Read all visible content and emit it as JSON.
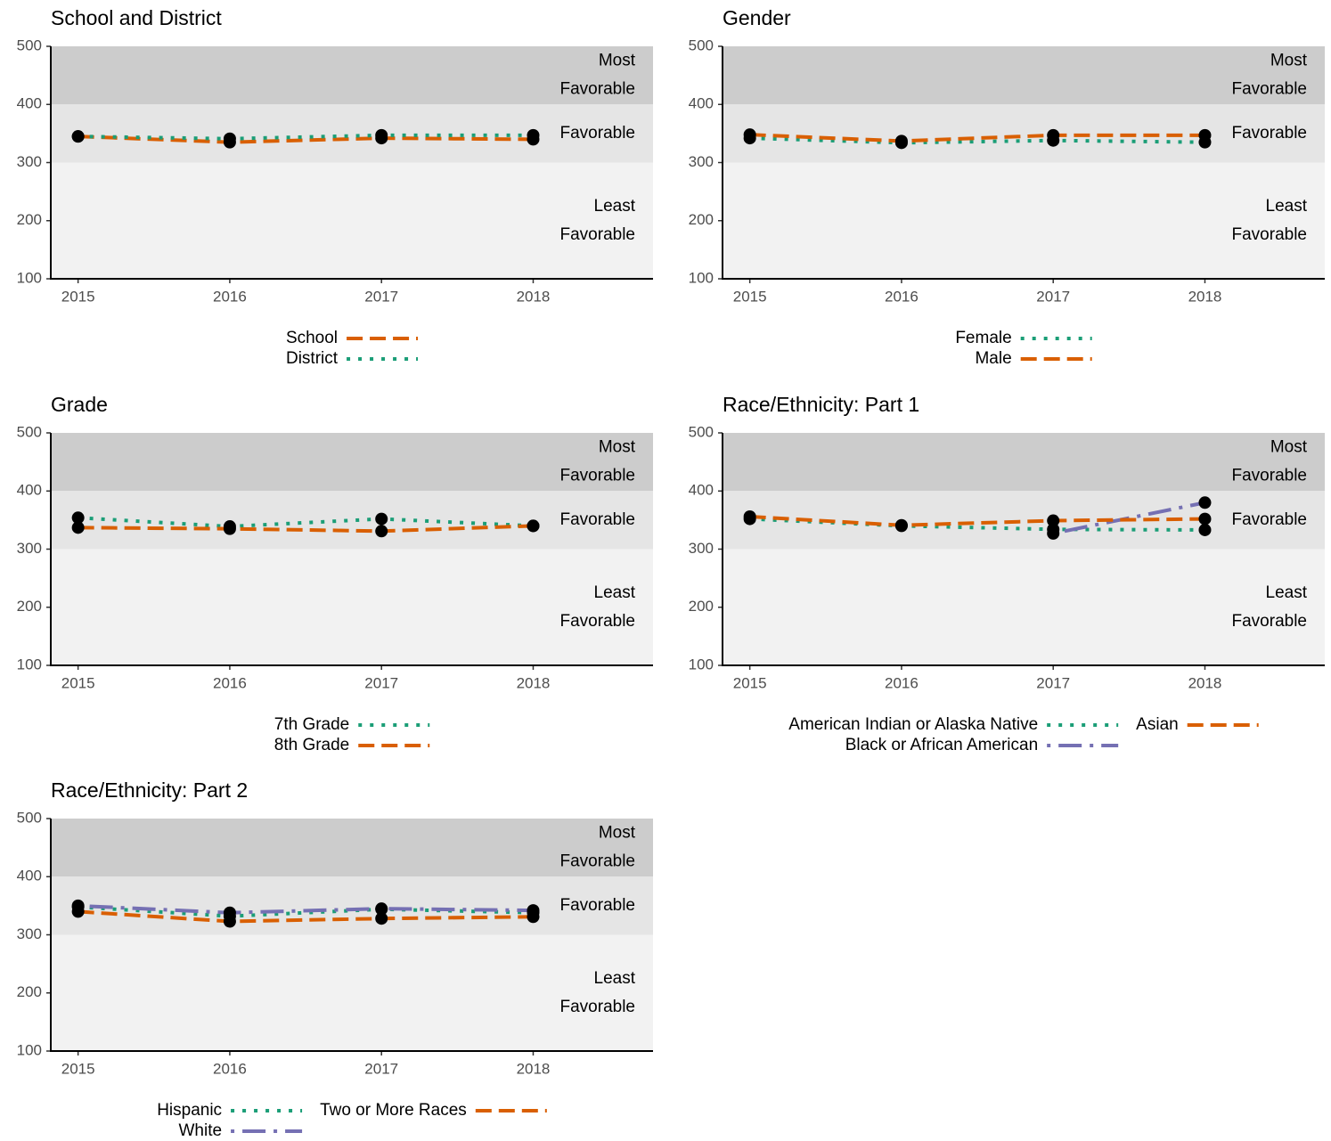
{
  "chart_data": [
    {
      "type": "line",
      "title": "School and District",
      "x": [
        2015,
        2016,
        2017,
        2018
      ],
      "xlim": [
        2014.82,
        2018.79
      ],
      "xticks": [
        2015,
        2016,
        2017,
        2018
      ],
      "ylim": [
        100,
        500
      ],
      "yticks": [
        100,
        200,
        300,
        400,
        500
      ],
      "bands": [
        {
          "from": 400,
          "to": 500,
          "color": "#cccccc",
          "label": [
            "Most",
            "Favorable"
          ]
        },
        {
          "from": 300,
          "to": 400,
          "color": "#e5e5e5",
          "label": [
            "Favorable"
          ]
        },
        {
          "from": 100,
          "to": 300,
          "color": "#f2f2f2",
          "label": [
            "Least",
            "Favorable"
          ]
        }
      ],
      "series": [
        {
          "name": "School",
          "color": "#d95f02",
          "style": "dashed",
          "values": [
            345,
            335,
            342,
            340
          ]
        },
        {
          "name": "District",
          "color": "#1b9e77",
          "style": "dotted",
          "values": [
            345,
            341,
            347,
            347
          ]
        }
      ]
    },
    {
      "type": "line",
      "title": "Gender",
      "x": [
        2015,
        2016,
        2017,
        2018
      ],
      "xlim": [
        2014.82,
        2018.79
      ],
      "xticks": [
        2015,
        2016,
        2017,
        2018
      ],
      "ylim": [
        100,
        500
      ],
      "yticks": [
        100,
        200,
        300,
        400,
        500
      ],
      "bands": [
        {
          "from": 400,
          "to": 500,
          "color": "#cccccc",
          "label": [
            "Most",
            "Favorable"
          ]
        },
        {
          "from": 300,
          "to": 400,
          "color": "#e5e5e5",
          "label": [
            "Favorable"
          ]
        },
        {
          "from": 100,
          "to": 300,
          "color": "#f2f2f2",
          "label": [
            "Least",
            "Favorable"
          ]
        }
      ],
      "series": [
        {
          "name": "Female",
          "color": "#1b9e77",
          "style": "dotted",
          "values": [
            342,
            334,
            338,
            335
          ]
        },
        {
          "name": "Male",
          "color": "#d95f02",
          "style": "dashed",
          "values": [
            348,
            337,
            347,
            347
          ]
        }
      ]
    },
    {
      "type": "line",
      "title": "Grade",
      "x": [
        2015,
        2016,
        2017,
        2018
      ],
      "xlim": [
        2014.82,
        2018.79
      ],
      "xticks": [
        2015,
        2016,
        2017,
        2018
      ],
      "ylim": [
        100,
        500
      ],
      "yticks": [
        100,
        200,
        300,
        400,
        500
      ],
      "bands": [
        {
          "from": 400,
          "to": 500,
          "color": "#cccccc",
          "label": [
            "Most",
            "Favorable"
          ]
        },
        {
          "from": 300,
          "to": 400,
          "color": "#e5e5e5",
          "label": [
            "Favorable"
          ]
        },
        {
          "from": 100,
          "to": 300,
          "color": "#f2f2f2",
          "label": [
            "Least",
            "Favorable"
          ]
        }
      ],
      "series": [
        {
          "name": "7th Grade",
          "color": "#1b9e77",
          "style": "dotted",
          "values": [
            354,
            339,
            352,
            340
          ]
        },
        {
          "name": "8th Grade",
          "color": "#d95f02",
          "style": "dashed",
          "values": [
            337,
            335,
            331,
            340
          ]
        }
      ]
    },
    {
      "type": "line",
      "title": "Race/Ethnicity: Part 1",
      "x": [
        2015,
        2016,
        2017,
        2018
      ],
      "xlim": [
        2014.82,
        2018.79
      ],
      "xticks": [
        2015,
        2016,
        2017,
        2018
      ],
      "ylim": [
        100,
        500
      ],
      "yticks": [
        100,
        200,
        300,
        400,
        500
      ],
      "bands": [
        {
          "from": 400,
          "to": 500,
          "color": "#cccccc",
          "label": [
            "Most",
            "Favorable"
          ]
        },
        {
          "from": 300,
          "to": 400,
          "color": "#e5e5e5",
          "label": [
            "Favorable"
          ]
        },
        {
          "from": 100,
          "to": 300,
          "color": "#f2f2f2",
          "label": [
            "Least",
            "Favorable"
          ]
        }
      ],
      "series": [
        {
          "name": "American Indian or Alaska Native",
          "color": "#1b9e77",
          "style": "dotted",
          "values": [
            352,
            340,
            334,
            333
          ]
        },
        {
          "name": "Black or African American",
          "color": "#7570b3",
          "style": "dotdash",
          "values": [
            null,
            null,
            327,
            380
          ]
        },
        {
          "name": "Asian",
          "color": "#d95f02",
          "style": "dashed",
          "values": [
            356,
            341,
            349,
            352
          ]
        }
      ]
    },
    {
      "type": "line",
      "title": "Race/Ethnicity: Part 2",
      "x": [
        2015,
        2016,
        2017,
        2018
      ],
      "xlim": [
        2014.82,
        2018.79
      ],
      "xticks": [
        2015,
        2016,
        2017,
        2018
      ],
      "ylim": [
        100,
        500
      ],
      "yticks": [
        100,
        200,
        300,
        400,
        500
      ],
      "bands": [
        {
          "from": 400,
          "to": 500,
          "color": "#cccccc",
          "label": [
            "Most",
            "Favorable"
          ]
        },
        {
          "from": 300,
          "to": 400,
          "color": "#e5e5e5",
          "label": [
            "Favorable"
          ]
        },
        {
          "from": 100,
          "to": 300,
          "color": "#f2f2f2",
          "label": [
            "Least",
            "Favorable"
          ]
        }
      ],
      "series": [
        {
          "name": "Hispanic",
          "color": "#1b9e77",
          "style": "dotted",
          "values": [
            348,
            332,
            344,
            338
          ]
        },
        {
          "name": "White",
          "color": "#7570b3",
          "style": "dotdash",
          "values": [
            350,
            338,
            345,
            342
          ]
        },
        {
          "name": "Two or More Races",
          "color": "#d95f02",
          "style": "dashed",
          "values": [
            340,
            323,
            328,
            331
          ]
        }
      ]
    }
  ]
}
